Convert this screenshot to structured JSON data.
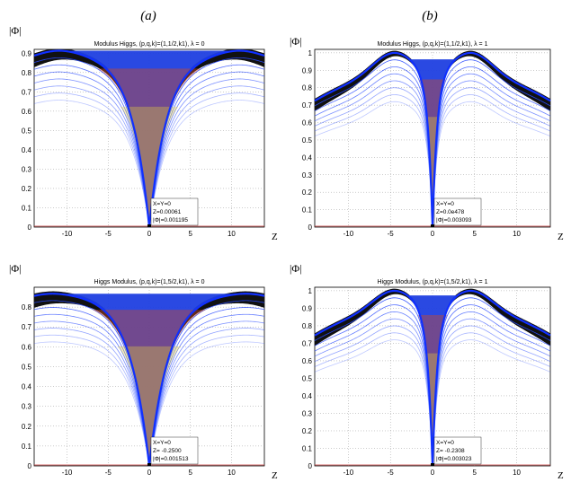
{
  "chart_data": [
    {
      "type": "line",
      "panel_label": "(a)",
      "title": "Modulus Higgs,  (p,q,k)=(1,1/2,k1),  λ = 0",
      "ylabel": "|Φ|",
      "xlabel": "Z",
      "xlim": [
        -14,
        14
      ],
      "ylim": [
        0,
        0.92
      ],
      "xticks": [
        -10,
        -5,
        0,
        5,
        10
      ],
      "yticks": [
        0.1,
        0.2,
        0.3,
        0.4,
        0.5,
        0.6,
        0.7,
        0.8,
        0.9
      ],
      "ytick_labels": [
        "0.1",
        "0.2",
        "0.3",
        "0.4",
        "0.5",
        "0.6",
        "0.7",
        "0.8",
        "0.9"
      ],
      "grid": true,
      "profile": {
        "base": 0.9,
        "bump_center": 10.5,
        "bump_height": 0.02,
        "dip_width": 2.2
      },
      "annotation": [
        "X=Y=0",
        "Z=0.00061",
        "|Φ|=0.001195"
      ]
    },
    {
      "type": "line",
      "panel_label": "(b)",
      "title": "Modulus Higgs,  (p,q,k)=(1,1/2,k1),  λ = 1",
      "ylabel": "|Φ|",
      "xlabel": "Z",
      "xlim": [
        -14,
        14
      ],
      "ylim": [
        0,
        1.02
      ],
      "xticks": [
        -10,
        -5,
        0,
        5,
        10
      ],
      "yticks": [
        0.1,
        0.2,
        0.3,
        0.4,
        0.5,
        0.6,
        0.7,
        0.8,
        0.9,
        1.0
      ],
      "ytick_labels": [
        "0.1",
        "0.2",
        "0.3",
        "0.4",
        "0.5",
        "0.6",
        "0.7",
        "0.8",
        "0.9",
        "1"
      ],
      "grid": true,
      "profile": {
        "base": 0.86,
        "bump_center": 4.5,
        "bump_height": 0.14,
        "dip_width": 0.55
      },
      "annotation": [
        "X=Y=0",
        "Z=0.0e478",
        "|Φ|=0.003093"
      ]
    },
    {
      "type": "line",
      "panel_label": "",
      "title": "Higgs Modulus,  (p,q,k)=(1,5/2,k1),  λ = 0",
      "ylabel": "|Φ|",
      "xlabel": "Z",
      "xlim": [
        -14,
        14
      ],
      "ylim": [
        0,
        0.9
      ],
      "xticks": [
        -10,
        -5,
        0,
        5,
        10
      ],
      "yticks": [
        0.1,
        0.2,
        0.3,
        0.4,
        0.5,
        0.6,
        0.7,
        0.8
      ],
      "ytick_labels": [
        "0.1",
        "0.2",
        "0.3",
        "0.4",
        "0.5",
        "0.6",
        "0.7",
        "0.8"
      ],
      "grid": true,
      "profile": {
        "base": 0.87,
        "bump_center": 11,
        "bump_height": 0.005,
        "dip_width": 2.4
      },
      "annotation": [
        "X=Y=0",
        "Z= -0.2500",
        "|Φ|=0.001513"
      ]
    },
    {
      "type": "line",
      "panel_label": "",
      "title": "Higgs Modulus,  (p,q,k)=(1,5/2,k1),  λ = 1",
      "ylabel": "|Φ|",
      "xlabel": "Z",
      "xlim": [
        -14,
        14
      ],
      "ylim": [
        0,
        1.02
      ],
      "xticks": [
        -10,
        -5,
        0,
        5,
        10
      ],
      "yticks": [
        0.1,
        0.2,
        0.3,
        0.4,
        0.5,
        0.6,
        0.7,
        0.8,
        0.9,
        1.0
      ],
      "ytick_labels": [
        "0.1",
        "0.2",
        "0.3",
        "0.4",
        "0.5",
        "0.6",
        "0.7",
        "0.8",
        "0.9",
        "1"
      ],
      "grid": true,
      "profile": {
        "base": 0.88,
        "bump_center": 4.5,
        "bump_height": 0.12,
        "dip_width": 0.6
      },
      "annotation": [
        "X=Y=0",
        "Z= -0.2308",
        "|Φ|=0.003023"
      ]
    }
  ]
}
